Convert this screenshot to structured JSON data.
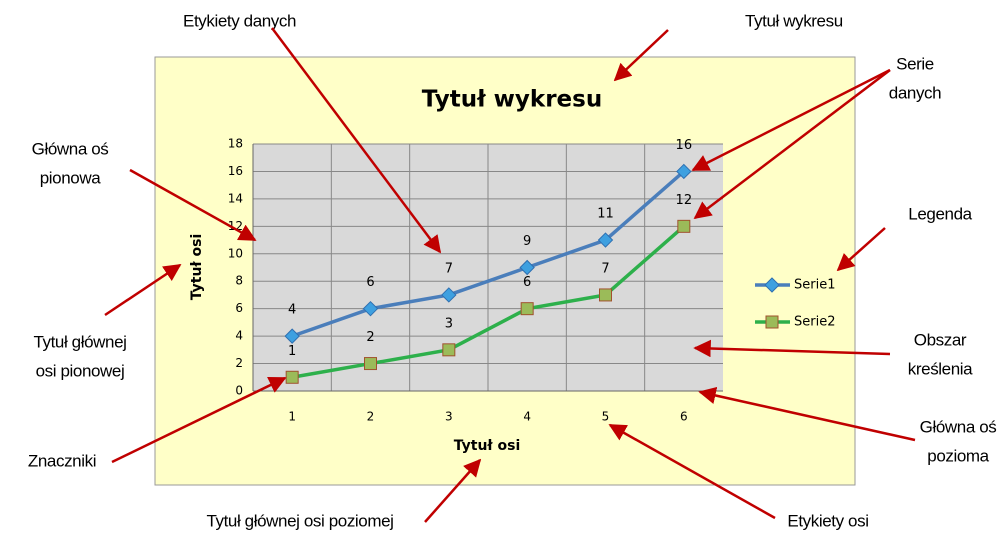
{
  "chart_data": {
    "type": "line",
    "title": "Tytuł wykresu",
    "x_label": "Tytuł osi",
    "y_label": "Tytuł osi",
    "categories": [
      "1",
      "2",
      "3",
      "4",
      "5",
      "6"
    ],
    "series": [
      {
        "name": "Serie1",
        "color": "#4a7ebb",
        "marker_color": "#3ea0e0",
        "marker": "diamond",
        "values": [
          4,
          6,
          7,
          9,
          11,
          16
        ]
      },
      {
        "name": "Serie2",
        "color": "#2db04b",
        "marker_color": "#9bbb59",
        "marker": "square",
        "values": [
          1,
          2,
          3,
          6,
          7,
          12
        ]
      }
    ],
    "ylim": [
      0,
      18
    ],
    "yticks": [
      0,
      2,
      4,
      6,
      8,
      10,
      12,
      14,
      16,
      18
    ],
    "grid": true,
    "legend": "right",
    "annotations": [
      {
        "lines": [
          "Etykiety danych"
        ]
      },
      {
        "lines": [
          "Tytuł wykresu"
        ]
      },
      {
        "lines": [
          "Serie",
          "danych"
        ]
      },
      {
        "lines": [
          "Główna oś",
          "pionowa"
        ]
      },
      {
        "lines": [
          "Legenda"
        ]
      },
      {
        "lines": [
          "Tytuł głównej",
          "osi pionowej"
        ]
      },
      {
        "lines": [
          "Obszar",
          "kreślenia"
        ]
      },
      {
        "lines": [
          "Główna oś",
          "pozioma"
        ]
      },
      {
        "lines": [
          "Znaczniki"
        ]
      },
      {
        "lines": [
          "Tytuł głównej osi poziomej"
        ]
      },
      {
        "lines": [
          "Etykiety osi"
        ]
      }
    ]
  }
}
